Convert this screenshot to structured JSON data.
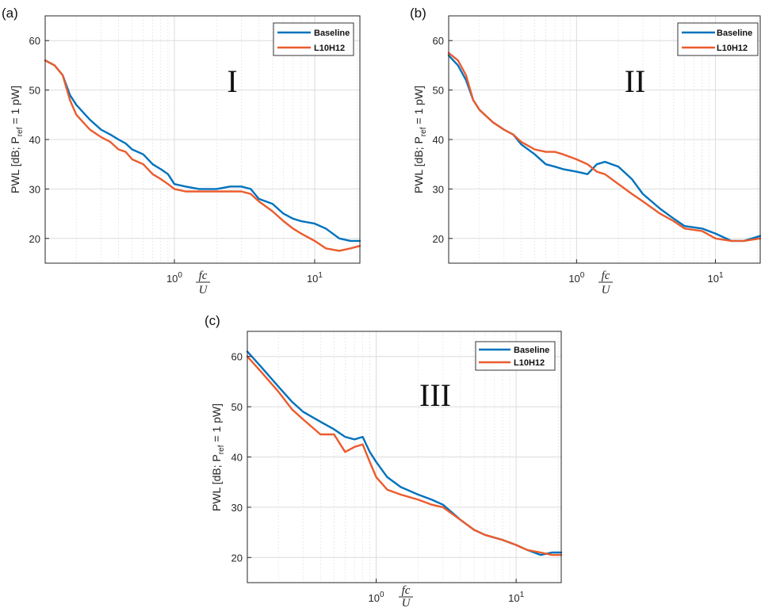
{
  "panels": [
    {
      "label": "(a)",
      "roman": "I",
      "ylabel_main": "PWL [dB; P",
      "ylabel_sub": "ref",
      "ylabel_rest": " = 1 pW]"
    },
    {
      "label": "(b)",
      "roman": "II",
      "ylabel_main": "PWL [dB; P",
      "ylabel_sub": "ref",
      "ylabel_rest": " = 1 pW]"
    },
    {
      "label": "(c)",
      "roman": "III",
      "ylabel_main": "PWL [dB; P",
      "ylabel_sub": "ref",
      "ylabel_rest": " = 1 pW]"
    }
  ],
  "xlabel": {
    "numerator": "fc",
    "denominator": "U"
  },
  "colors": {
    "baseline": "#0072BD",
    "l10h12": "#EB5B2D",
    "axis": "#262626",
    "grid": "#dcdcdc"
  },
  "chart_data": [
    {
      "type": "line",
      "xscale": "log",
      "xlim": [
        0.12,
        21
      ],
      "ylim": [
        15,
        65
      ],
      "xticks": [
        1,
        10
      ],
      "xtick_labels": [
        {
          "base": "10",
          "exp": "0"
        },
        {
          "base": "10",
          "exp": "1"
        }
      ],
      "yticks": [
        20,
        30,
        40,
        50,
        60
      ],
      "ytick_labels": [
        "20",
        "30",
        "40",
        "50",
        "60"
      ],
      "grid": true,
      "legend_position": "top-right",
      "series": [
        {
          "name": "Baseline",
          "x": [
            0.12,
            0.14,
            0.16,
            0.18,
            0.2,
            0.25,
            0.3,
            0.35,
            0.4,
            0.45,
            0.5,
            0.6,
            0.7,
            0.8,
            0.9,
            1.0,
            1.2,
            1.5,
            2.0,
            2.5,
            3.0,
            3.5,
            4.0,
            5.0,
            6.0,
            7.0,
            8.0,
            10,
            12,
            15,
            18,
            21
          ],
          "y": [
            56,
            55,
            53,
            49,
            47,
            44,
            42,
            41,
            40,
            39.2,
            38,
            37,
            35,
            34,
            33,
            31,
            30.5,
            30,
            30,
            30.5,
            30.5,
            30,
            28,
            27,
            25,
            24,
            23.5,
            23,
            22,
            20,
            19.5,
            19.5
          ]
        },
        {
          "name": "L10H12",
          "x": [
            0.12,
            0.14,
            0.16,
            0.18,
            0.2,
            0.25,
            0.3,
            0.35,
            0.4,
            0.45,
            0.5,
            0.6,
            0.7,
            0.8,
            0.9,
            1.0,
            1.2,
            1.5,
            2.0,
            2.5,
            3.0,
            3.5,
            4.0,
            5.0,
            6.0,
            7.0,
            8.0,
            10,
            12,
            15,
            18,
            21
          ],
          "y": [
            56,
            55,
            53,
            48,
            45,
            42,
            40.5,
            39.5,
            38,
            37.5,
            36,
            35,
            33,
            32,
            31,
            30,
            29.5,
            29.5,
            29.5,
            29.5,
            29.5,
            29,
            27.5,
            25.5,
            23.5,
            22,
            21,
            19.5,
            18,
            17.5,
            18,
            18.5
          ]
        }
      ]
    },
    {
      "type": "line",
      "xscale": "log",
      "xlim": [
        0.12,
        21
      ],
      "ylim": [
        15,
        65
      ],
      "xticks": [
        1,
        10
      ],
      "xtick_labels": [
        {
          "base": "10",
          "exp": "0"
        },
        {
          "base": "10",
          "exp": "1"
        }
      ],
      "yticks": [
        20,
        30,
        40,
        50,
        60
      ],
      "ytick_labels": [
        "20",
        "30",
        "40",
        "50",
        "60"
      ],
      "grid": true,
      "legend_position": "top-right",
      "series": [
        {
          "name": "Baseline",
          "x": [
            0.12,
            0.14,
            0.16,
            0.18,
            0.2,
            0.25,
            0.3,
            0.35,
            0.4,
            0.5,
            0.6,
            0.7,
            0.8,
            1.0,
            1.2,
            1.4,
            1.6,
            2.0,
            2.5,
            3.0,
            4.0,
            5.0,
            6.0,
            8.0,
            10,
            13,
            16,
            21
          ],
          "y": [
            57,
            55,
            52,
            48,
            46,
            43.5,
            42,
            41,
            39,
            37,
            35,
            34.5,
            34,
            33.5,
            33,
            35,
            35.5,
            34.5,
            32,
            29,
            26,
            24,
            22.5,
            22,
            21,
            19.5,
            19.5,
            20.5
          ]
        },
        {
          "name": "L10H12",
          "x": [
            0.12,
            0.14,
            0.16,
            0.18,
            0.2,
            0.25,
            0.3,
            0.35,
            0.4,
            0.5,
            0.6,
            0.7,
            0.8,
            1.0,
            1.2,
            1.4,
            1.6,
            2.0,
            2.5,
            3.0,
            4.0,
            5.0,
            6.0,
            8.0,
            10,
            13,
            16,
            21
          ],
          "y": [
            57.5,
            56,
            53,
            48,
            46,
            43.5,
            42,
            41,
            39.5,
            38,
            37.5,
            37.5,
            37,
            36,
            35,
            33.5,
            33,
            31,
            29,
            27.5,
            25,
            23.5,
            22,
            21.5,
            20,
            19.5,
            19.5,
            20
          ]
        }
      ]
    },
    {
      "type": "line",
      "xscale": "log",
      "xlim": [
        0.12,
        21
      ],
      "ylim": [
        15,
        65
      ],
      "xticks": [
        1,
        10
      ],
      "xtick_labels": [
        {
          "base": "10",
          "exp": "0"
        },
        {
          "base": "10",
          "exp": "1"
        }
      ],
      "yticks": [
        20,
        30,
        40,
        50,
        60
      ],
      "ytick_labels": [
        "20",
        "30",
        "40",
        "50",
        "60"
      ],
      "grid": true,
      "legend_position": "top-right",
      "series": [
        {
          "name": "Baseline",
          "x": [
            0.12,
            0.15,
            0.2,
            0.25,
            0.3,
            0.4,
            0.5,
            0.6,
            0.7,
            0.8,
            0.9,
            1.0,
            1.2,
            1.5,
            2.0,
            2.5,
            3.0,
            4.0,
            5.0,
            6.0,
            8.0,
            10,
            12,
            15,
            18,
            21
          ],
          "y": [
            61,
            58,
            54,
            51,
            49,
            47,
            45.5,
            44,
            43.5,
            44,
            41,
            39,
            36,
            34,
            32.5,
            31.5,
            30.5,
            27.5,
            25.5,
            24.5,
            23.5,
            22.5,
            21.5,
            20.5,
            21,
            21
          ]
        },
        {
          "name": "L10H12",
          "x": [
            0.12,
            0.15,
            0.2,
            0.25,
            0.3,
            0.4,
            0.5,
            0.6,
            0.7,
            0.8,
            0.9,
            1.0,
            1.2,
            1.5,
            2.0,
            2.5,
            3.0,
            4.0,
            5.0,
            6.0,
            8.0,
            10,
            12,
            15,
            18,
            21
          ],
          "y": [
            60,
            57,
            53,
            49.5,
            47.5,
            44.5,
            44.5,
            41,
            42,
            42.5,
            39,
            36,
            33.5,
            32.5,
            31.5,
            30.5,
            30,
            27.5,
            25.5,
            24.5,
            23.5,
            22.5,
            21.5,
            21,
            20.5,
            20.5
          ]
        }
      ]
    }
  ]
}
